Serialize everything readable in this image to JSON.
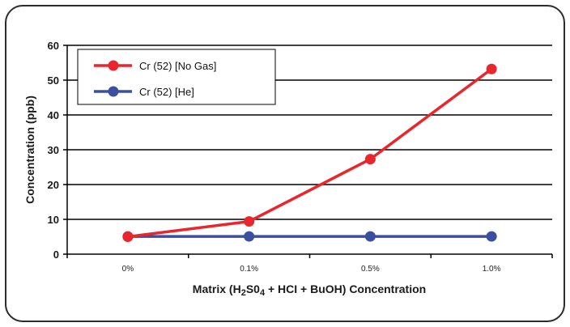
{
  "chart_data": {
    "type": "line",
    "categories": [
      "0%",
      "0.1%",
      "0.5%",
      "1.0%"
    ],
    "series": [
      {
        "name": "Cr (52) [No Gas]",
        "values": [
          5.0,
          9.4,
          27.3,
          53.2
        ],
        "color": "#e8262c"
      },
      {
        "name": "Cr (52) [He]",
        "values": [
          5.1,
          5.1,
          5.1,
          5.1
        ],
        "color": "#3b4fa0"
      }
    ],
    "xlabel_parts": {
      "prefix": "Matrix (H",
      "sub1": "2",
      "mid": "S0",
      "sub2": "4",
      "suffix": " + HCI + BuOH) Concentration"
    },
    "ylabel": "Concentration (ppb)",
    "ylim": [
      0,
      60
    ],
    "yticks": [
      "0",
      "10",
      "20",
      "30",
      "40",
      "50",
      "60"
    ],
    "grid": "horizontal",
    "legend": "top-left"
  }
}
